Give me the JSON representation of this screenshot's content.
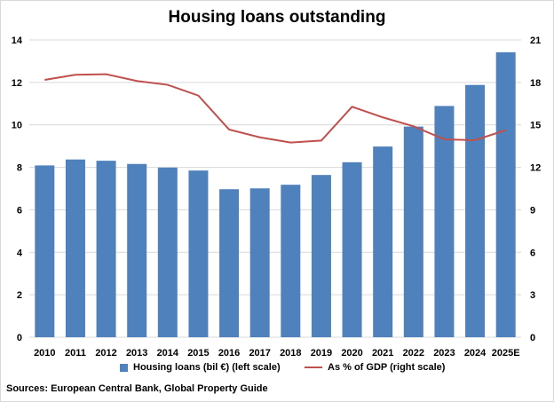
{
  "chart_data": {
    "type": "bar+line",
    "title": "Housing loans outstanding",
    "categories": [
      "2010",
      "2011",
      "2012",
      "2013",
      "2014",
      "2015",
      "2016",
      "2017",
      "2018",
      "2019",
      "2020",
      "2021",
      "2022",
      "2023",
      "2024",
      "2025E"
    ],
    "series": [
      {
        "name": "Housing loans (bil €) (left scale)",
        "type": "bar",
        "axis": "left",
        "color": "#4f81bd",
        "values": [
          8.09,
          8.37,
          8.31,
          8.16,
          7.99,
          7.85,
          6.97,
          7.01,
          7.18,
          7.64,
          8.24,
          8.98,
          9.92,
          10.89,
          11.88,
          13.42
        ]
      },
      {
        "name": "As % of GDP (right scale)",
        "type": "line",
        "axis": "right",
        "color": "#c0504d",
        "values": [
          18.18,
          18.54,
          18.58,
          18.1,
          17.83,
          17.07,
          14.67,
          14.12,
          13.75,
          13.89,
          16.28,
          15.53,
          14.9,
          13.98,
          13.92,
          14.63
        ]
      }
    ],
    "ylim_left": [
      0,
      14
    ],
    "yticks_left": [
      "0",
      "2",
      "4",
      "6",
      "8",
      "10",
      "12",
      "14"
    ],
    "ylim_right": [
      0,
      21
    ],
    "yticks_right": [
      "0",
      "3",
      "6",
      "9",
      "12",
      "15",
      "18",
      "21"
    ],
    "grid": true,
    "legend": "bottom"
  },
  "source": "Sources: European Central Bank, Global Property Guide"
}
